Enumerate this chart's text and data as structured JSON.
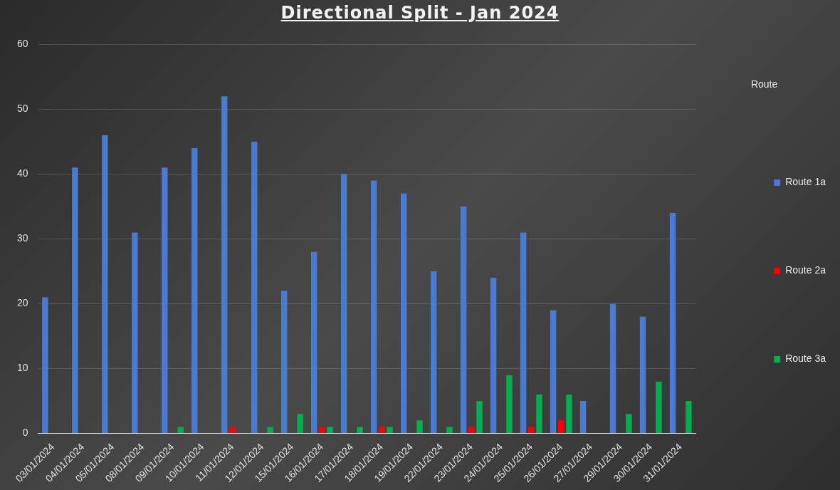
{
  "chart_data": {
    "type": "bar",
    "title": "Directional Split - Jan 2024",
    "legend_title": "Route",
    "categories": [
      "03/01/2024",
      "04/01/2024",
      "05/01/2024",
      "08/01/2024",
      "09/01/2024",
      "10/01/2024",
      "11/01/2024",
      "12/01/2024",
      "15/01/2024",
      "16/01/2024",
      "17/01/2024",
      "18/01/2024",
      "19/01/2024",
      "22/01/2024",
      "23/01/2024",
      "24/01/2024",
      "25/01/2024",
      "26/01/2024",
      "27/01/2024",
      "29/01/2024",
      "30/01/2024",
      "31/01/2024"
    ],
    "series": [
      {
        "name": "Route 1a",
        "color": "#4a7bd3",
        "values": [
          21,
          41,
          46,
          31,
          41,
          44,
          52,
          45,
          22,
          28,
          40,
          39,
          37,
          25,
          35,
          24,
          31,
          19,
          5,
          20,
          18,
          34
        ]
      },
      {
        "name": "Route 2a",
        "color": "#ff0000",
        "values": [
          null,
          null,
          null,
          null,
          null,
          null,
          1,
          null,
          null,
          1,
          null,
          1,
          null,
          null,
          1,
          null,
          1,
          2,
          null,
          null,
          null,
          null
        ]
      },
      {
        "name": "Route 3a",
        "color": "#00b050",
        "values": [
          null,
          null,
          null,
          null,
          1,
          null,
          null,
          1,
          3,
          1,
          1,
          1,
          2,
          1,
          5,
          9,
          6,
          6,
          null,
          3,
          8,
          5
        ]
      }
    ],
    "ylim": [
      0,
      60
    ],
    "yticks": [
      0,
      10,
      20,
      30,
      40,
      50,
      60
    ],
    "grid": "y",
    "legend": "right"
  }
}
